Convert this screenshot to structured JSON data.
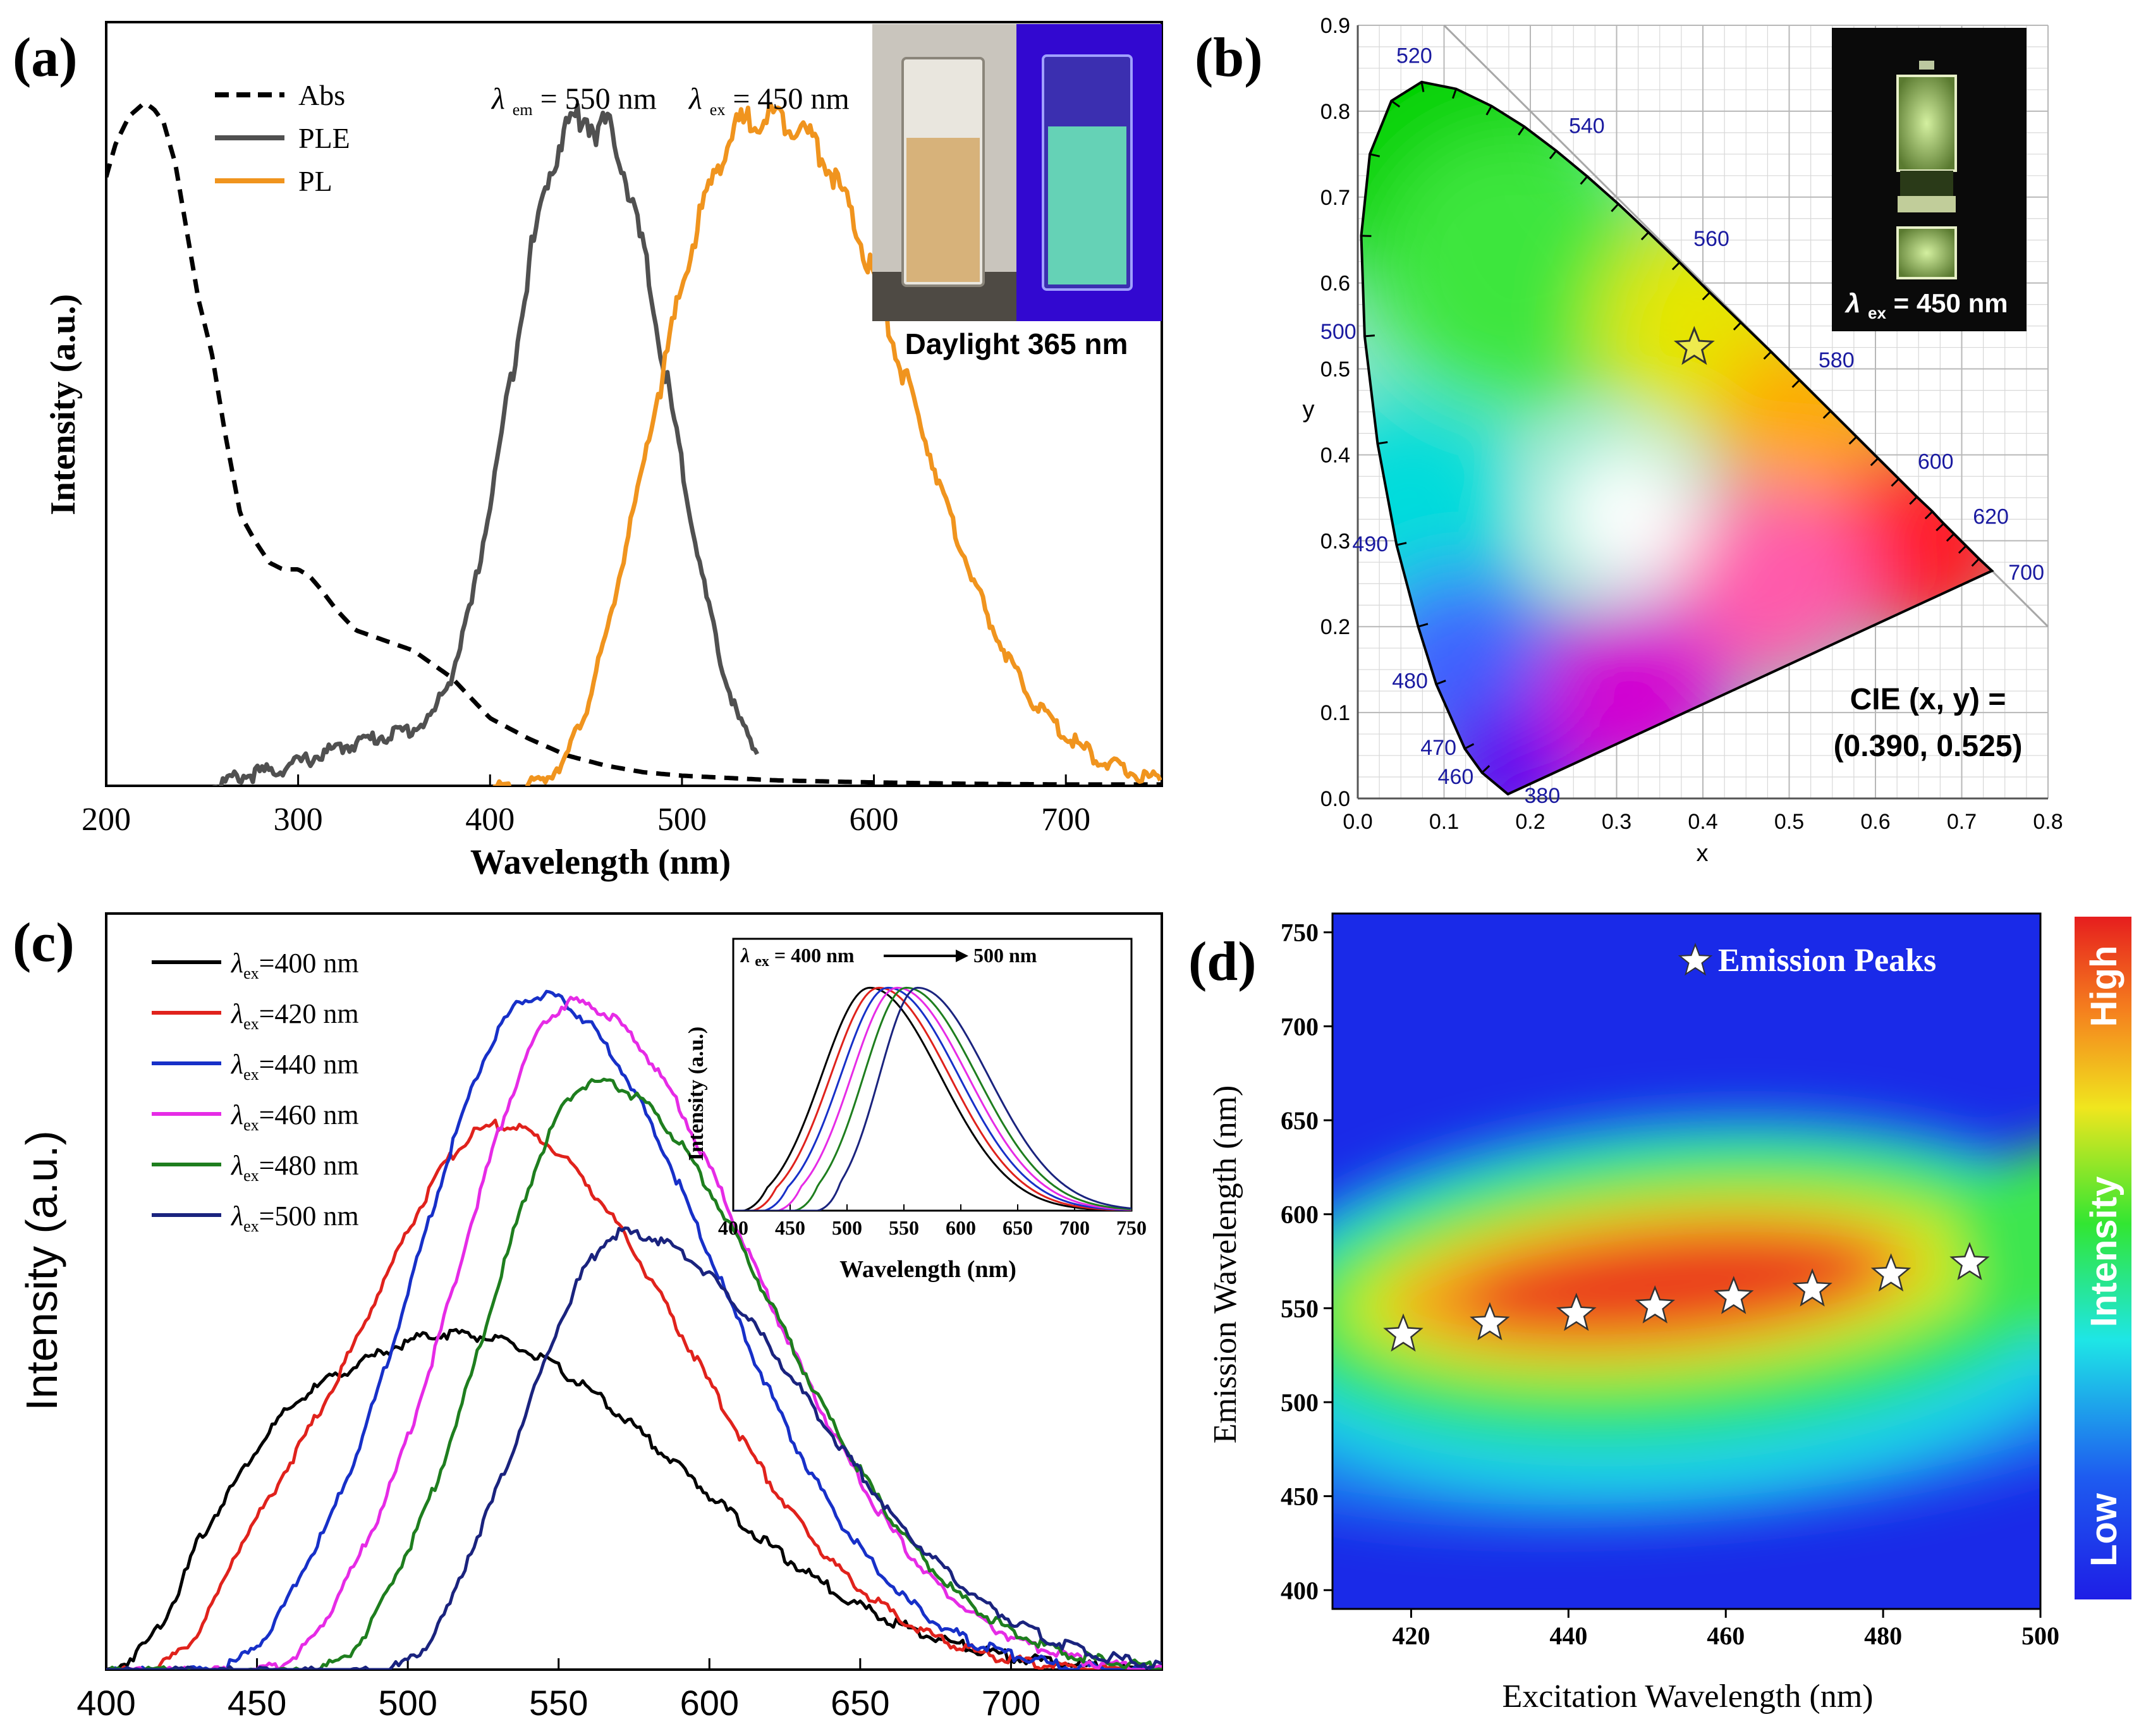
{
  "figure": {
    "panel_labels": [
      "(a)",
      "(b)",
      "(c)",
      "(d)"
    ]
  },
  "chart_data": [
    {
      "panel": "(a)",
      "type": "line",
      "xlabel": "Wavelength (nm)",
      "ylabel": "Intensity (a.u.)",
      "xlim": [
        200,
        750
      ],
      "xticks": [
        200,
        300,
        400,
        500,
        600,
        700
      ],
      "ylim": [
        0,
        1.05
      ],
      "legend": [
        "Abs",
        "PLE",
        "PL"
      ],
      "annotation_em": {
        "symbol": "λ",
        "sub": "em",
        "text": " = 550 nm"
      },
      "annotation_ex": {
        "symbol": "λ",
        "sub": "ex",
        "text": " = 450 nm"
      },
      "inset_caption": "Daylight 365 nm",
      "series": [
        {
          "name": "Abs",
          "color": "#000000",
          "style": "dashed",
          "x": [
            200,
            205,
            212,
            220,
            225,
            230,
            236,
            242,
            248,
            255,
            262,
            270,
            278,
            285,
            292,
            300,
            306,
            312,
            320,
            330,
            340,
            350,
            360,
            370,
            380,
            390,
            400,
            420,
            440,
            460,
            480,
            500,
            550,
            600,
            650,
            700,
            750
          ],
          "y": [
            0.9,
            0.95,
            0.99,
            1.01,
            1.0,
            0.98,
            0.92,
            0.82,
            0.72,
            0.64,
            0.52,
            0.4,
            0.36,
            0.33,
            0.32,
            0.32,
            0.31,
            0.29,
            0.26,
            0.23,
            0.22,
            0.21,
            0.2,
            0.18,
            0.16,
            0.13,
            0.1,
            0.07,
            0.045,
            0.03,
            0.02,
            0.015,
            0.008,
            0.005,
            0.003,
            0.002,
            0.002
          ]
        },
        {
          "name": "PLE",
          "color": "#505050",
          "style": "solid",
          "x": [
            250,
            270,
            290,
            310,
            330,
            345,
            360,
            370,
            380,
            390,
            400,
            410,
            420,
            430,
            440,
            445,
            450,
            455,
            460,
            465,
            470,
            480,
            490,
            500,
            510,
            520,
            530,
            540
          ],
          "y": [
            0.0,
            0.02,
            0.03,
            0.05,
            0.07,
            0.08,
            0.09,
            0.11,
            0.17,
            0.27,
            0.42,
            0.6,
            0.78,
            0.91,
            0.99,
            1.0,
            1.0,
            0.98,
            0.99,
            0.97,
            0.92,
            0.8,
            0.64,
            0.48,
            0.32,
            0.19,
            0.1,
            0.05
          ]
        },
        {
          "name": "PL",
          "color": "#F0941E",
          "style": "solid",
          "x": [
            400,
            420,
            430,
            440,
            450,
            460,
            470,
            480,
            490,
            500,
            510,
            520,
            530,
            540,
            550,
            560,
            570,
            580,
            590,
            600,
            620,
            640,
            660,
            680,
            700,
            720,
            740,
            750
          ],
          "y": [
            0.0,
            0.005,
            0.02,
            0.05,
            0.12,
            0.22,
            0.35,
            0.48,
            0.62,
            0.75,
            0.86,
            0.94,
            0.99,
            1.0,
            1.0,
            0.99,
            0.96,
            0.91,
            0.84,
            0.76,
            0.58,
            0.4,
            0.25,
            0.14,
            0.08,
            0.04,
            0.02,
            0.015
          ]
        }
      ]
    },
    {
      "panel": "(b)",
      "type": "scatter",
      "title": "",
      "xlabel": "x",
      "ylabel": "y",
      "xlim": [
        0.0,
        0.8
      ],
      "ylim": [
        0.0,
        0.9
      ],
      "xticks": [
        0.0,
        0.1,
        0.2,
        0.3,
        0.4,
        0.5,
        0.6,
        0.7,
        0.8
      ],
      "yticks": [
        0.0,
        0.1,
        0.2,
        0.3,
        0.4,
        0.5,
        0.6,
        0.7,
        0.8,
        0.9
      ],
      "locus_labels": [
        {
          "nm": "380",
          "x": 0.174,
          "y": 0.005
        },
        {
          "nm": "460",
          "x": 0.144,
          "y": 0.03
        },
        {
          "nm": "470",
          "x": 0.124,
          "y": 0.058
        },
        {
          "nm": "480",
          "x": 0.091,
          "y": 0.133
        },
        {
          "nm": "490",
          "x": 0.045,
          "y": 0.295
        },
        {
          "nm": "500",
          "x": 0.008,
          "y": 0.538
        },
        {
          "nm": "520",
          "x": 0.074,
          "y": 0.834
        },
        {
          "nm": "540",
          "x": 0.23,
          "y": 0.754
        },
        {
          "nm": "560",
          "x": 0.373,
          "y": 0.624
        },
        {
          "nm": "580",
          "x": 0.512,
          "y": 0.487
        },
        {
          "nm": "600",
          "x": 0.627,
          "y": 0.372
        },
        {
          "nm": "620",
          "x": 0.691,
          "y": 0.308
        },
        {
          "nm": "700",
          "x": 0.735,
          "y": 0.265
        }
      ],
      "point": {
        "x": 0.39,
        "y": 0.525
      },
      "cie_label": "CIE (x, y) =",
      "cie_value": "(0.390, 0.525)",
      "inset_label_symbol": "λ",
      "inset_label_sub": "ex",
      "inset_label_text": " = 450 nm"
    },
    {
      "panel": "(c)",
      "type": "line",
      "xlabel": "",
      "ylabel": "Intensity (a.u.)",
      "xlim": [
        400,
        750
      ],
      "xticks": [
        400,
        450,
        500,
        550,
        600,
        650,
        700
      ],
      "ylim": [
        0,
        1.05
      ],
      "legend_prefix": "λ",
      "legend_sub": "ex",
      "series": [
        {
          "name": "=400 nm",
          "color": "#000000",
          "peak": 515,
          "amp": 0.47,
          "wl": 55,
          "wr": 75,
          "start": 400,
          "shoulder": 0.08
        },
        {
          "name": "=420 nm",
          "color": "#E0221C",
          "peak": 530,
          "amp": 0.76,
          "wl": 45,
          "wr": 62,
          "start": 412,
          "shoulder": 0.06
        },
        {
          "name": "=440 nm",
          "color": "#1730C8",
          "peak": 543,
          "amp": 0.94,
          "wl": 40,
          "wr": 58,
          "start": 432,
          "shoulder": 0.0
        },
        {
          "name": "=460 nm",
          "color": "#E62BE6",
          "peak": 555,
          "amp": 0.93,
          "wl": 38,
          "wr": 60,
          "start": 448,
          "shoulder": 0.0
        },
        {
          "name": "=480 nm",
          "color": "#1E7E1E",
          "peak": 562,
          "amp": 0.82,
          "wl": 35,
          "wr": 60,
          "start": 465,
          "shoulder": 0.0
        },
        {
          "name": "=500 nm",
          "color": "#1A237E",
          "peak": 572,
          "amp": 0.61,
          "wl": 32,
          "wr": 62,
          "start": 490,
          "shoulder": 0.0
        }
      ],
      "inset": {
        "title_symbol": "λ",
        "title_sub": "ex",
        "title_text": "= 400 nm",
        "title_text2": "500 nm",
        "xlabel": "Wavelength (nm)",
        "ylabel": "Intensity (a.u.)",
        "xlim": [
          400,
          750
        ],
        "xticks": [
          400,
          450,
          500,
          550,
          600,
          650,
          700,
          750
        ],
        "peaks": [
          520,
          528,
          536,
          544,
          552,
          562
        ],
        "starts": [
          410,
          418,
          428,
          440,
          455,
          475
        ]
      }
    },
    {
      "panel": "(d)",
      "type": "heatmap",
      "xlabel": "Excitation Wavelength (nm)",
      "ylabel": "Emission Wavelength (nm)",
      "xlim": [
        410,
        500
      ],
      "ylim": [
        390,
        760
      ],
      "xticks": [
        420,
        440,
        460,
        480,
        500
      ],
      "yticks": [
        400,
        450,
        500,
        550,
        600,
        650,
        700,
        750
      ],
      "legend_label": "Emission Peaks",
      "colorbar": {
        "high": "High",
        "mid": "Intensity",
        "low": "Low"
      },
      "peaks": [
        {
          "ex": 419,
          "em": 536
        },
        {
          "ex": 430,
          "em": 542
        },
        {
          "ex": 441,
          "em": 547
        },
        {
          "ex": 451,
          "em": 551
        },
        {
          "ex": 461,
          "em": 556
        },
        {
          "ex": 471,
          "em": 560
        },
        {
          "ex": 481,
          "em": 568
        },
        {
          "ex": 491,
          "em": 574
        }
      ]
    }
  ]
}
